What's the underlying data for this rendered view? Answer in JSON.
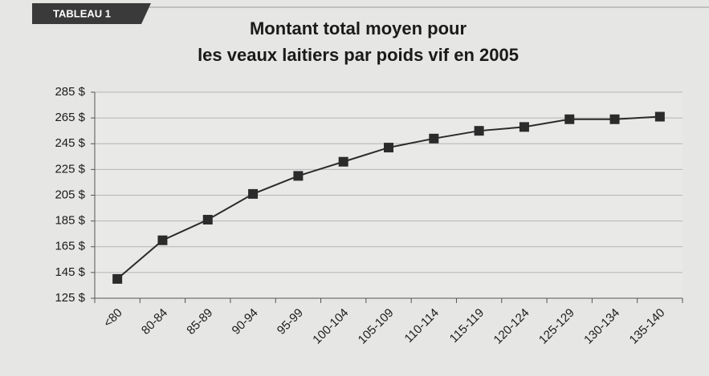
{
  "chart_data": {
    "type": "line",
    "tag": "TABLEAU 1",
    "title": [
      "Montant total moyen pour",
      "les veaux laitiers par poids vif en 2005"
    ],
    "categories": [
      "<80",
      "80-84",
      "85-89",
      "90-94",
      "95-99",
      "100-104",
      "105-109",
      "110-114",
      "115-119",
      "120-124",
      "125-129",
      "130-134",
      "135-140"
    ],
    "values": [
      140,
      170,
      186,
      206,
      220,
      231,
      242,
      249,
      255,
      258,
      264,
      264,
      266
    ],
    "color": "#2b2b2b",
    "ylim": [
      125,
      285
    ],
    "yticks": [
      {
        "value": 125,
        "label": "125 $"
      },
      {
        "value": 145,
        "label": "145 $"
      },
      {
        "value": 165,
        "label": "165 $"
      },
      {
        "value": 185,
        "label": "185 $"
      },
      {
        "value": 205,
        "label": "205 $"
      },
      {
        "value": 225,
        "label": "225 $"
      },
      {
        "value": 245,
        "label": "245 $"
      },
      {
        "value": 265,
        "label": "265 $"
      },
      {
        "value": 285,
        "label": "285 $"
      }
    ],
    "grid": true
  }
}
